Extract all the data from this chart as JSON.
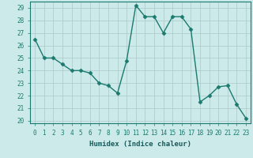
{
  "x": [
    0,
    1,
    2,
    3,
    4,
    5,
    6,
    7,
    8,
    9,
    10,
    11,
    12,
    13,
    14,
    15,
    16,
    17,
    18,
    19,
    20,
    21,
    22,
    23
  ],
  "y": [
    26.5,
    25.0,
    25.0,
    24.5,
    24.0,
    24.0,
    23.8,
    23.0,
    22.8,
    22.2,
    24.8,
    29.2,
    28.3,
    28.3,
    27.0,
    28.3,
    28.3,
    27.3,
    21.5,
    22.0,
    22.7,
    22.8,
    21.3,
    20.2
  ],
  "line_color": "#1a7a6e",
  "marker": "D",
  "markersize": 2.5,
  "background_color": "#cceaea",
  "grid_color": "#aac8c8",
  "xlabel": "Humidex (Indice chaleur)",
  "ylim": [
    19.8,
    29.5
  ],
  "xlim": [
    -0.5,
    23.5
  ],
  "yticks": [
    20,
    21,
    22,
    23,
    24,
    25,
    26,
    27,
    28,
    29
  ],
  "xticks": [
    0,
    1,
    2,
    3,
    4,
    5,
    6,
    7,
    8,
    9,
    10,
    11,
    12,
    13,
    14,
    15,
    16,
    17,
    18,
    19,
    20,
    21,
    22,
    23
  ],
  "tick_fontsize": 5.5,
  "label_fontsize": 6.5,
  "linewidth": 1.0
}
